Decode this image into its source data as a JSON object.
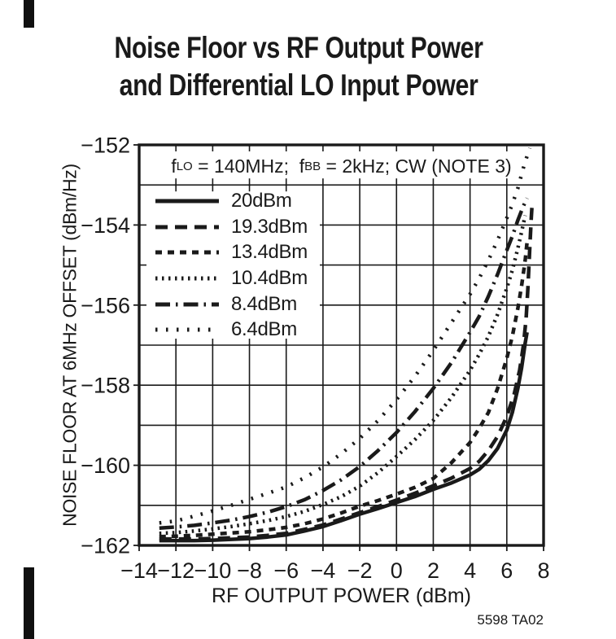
{
  "footer": {
    "figure_id": "5598 TA02"
  },
  "chart_data": {
    "type": "line",
    "title_lines": [
      "Noise Floor vs RF Output Power",
      "and Differential LO Input Power"
    ],
    "annotation_parts": {
      "p1": "f",
      "s1": "LO",
      "p2": " = 140MHz;  f",
      "s2": "BB",
      "p3": " = 2kHz; CW (NOTE 3)"
    },
    "xlabel": "RF OUTPUT POWER (dBm)",
    "ylabel": "NOISE FLOOR AT 6MHz OFFSET (dBm/Hz)",
    "xlim": [
      -14,
      8
    ],
    "ylim": [
      -162,
      -152
    ],
    "x_ticks": [
      -14,
      -12,
      -10,
      -8,
      -6,
      -4,
      -2,
      0,
      2,
      4,
      6,
      8
    ],
    "y_ticks": [
      -162,
      -160,
      -158,
      -156,
      -154,
      -152
    ],
    "x_grid_step": 2,
    "y_grid_step": 1,
    "grid": true,
    "legend_position": "upper-left-inside",
    "line_color": "#1a1a1a",
    "series": [
      {
        "name": "20dBm",
        "style": "solid",
        "dash": "",
        "points": [
          [
            -12.9,
            -161.88
          ],
          [
            -12,
            -161.88
          ],
          [
            -11,
            -161.88
          ],
          [
            -10,
            -161.87
          ],
          [
            -9,
            -161.85
          ],
          [
            -8,
            -161.83
          ],
          [
            -7,
            -161.79
          ],
          [
            -6,
            -161.74
          ],
          [
            -5,
            -161.64
          ],
          [
            -4,
            -161.53
          ],
          [
            -3,
            -161.38
          ],
          [
            -2,
            -161.22
          ],
          [
            -1,
            -161.08
          ],
          [
            0,
            -160.93
          ],
          [
            1,
            -160.78
          ],
          [
            2,
            -160.6
          ],
          [
            3,
            -160.44
          ],
          [
            4,
            -160.24
          ],
          [
            4.5,
            -160.1
          ],
          [
            5,
            -159.88
          ],
          [
            5.5,
            -159.58
          ],
          [
            6,
            -159.12
          ],
          [
            6.3,
            -158.68
          ],
          [
            6.6,
            -158.08
          ],
          [
            6.8,
            -157.58
          ],
          [
            7,
            -156.95
          ],
          [
            7.1,
            -156.68
          ]
        ]
      },
      {
        "name": "19.3dBm",
        "style": "long-dash",
        "dash": "15 9",
        "points": [
          [
            -12.9,
            -161.84
          ],
          [
            -12,
            -161.84
          ],
          [
            -11,
            -161.84
          ],
          [
            -10,
            -161.83
          ],
          [
            -9,
            -161.81
          ],
          [
            -8,
            -161.79
          ],
          [
            -7,
            -161.75
          ],
          [
            -6,
            -161.7
          ],
          [
            -5,
            -161.6
          ],
          [
            -4,
            -161.49
          ],
          [
            -3,
            -161.34
          ],
          [
            -2,
            -161.18
          ],
          [
            -1,
            -161.03
          ],
          [
            0,
            -160.87
          ],
          [
            1,
            -160.7
          ],
          [
            2,
            -160.51
          ],
          [
            3,
            -160.32
          ],
          [
            4,
            -160.08
          ],
          [
            4.5,
            -159.9
          ],
          [
            5,
            -159.63
          ],
          [
            5.5,
            -159.28
          ],
          [
            6,
            -158.78
          ],
          [
            6.4,
            -158.22
          ],
          [
            6.7,
            -157.62
          ],
          [
            6.9,
            -157.02
          ],
          [
            7.05,
            -156.35
          ],
          [
            7.15,
            -155.55
          ],
          [
            7.25,
            -154.55
          ],
          [
            7.33,
            -153.82
          ],
          [
            7.38,
            -153.45
          ]
        ]
      },
      {
        "name": "13.4dBm",
        "style": "short-dash",
        "dash": "8 7",
        "points": [
          [
            -12.9,
            -161.78
          ],
          [
            -12,
            -161.77
          ],
          [
            -11,
            -161.75
          ],
          [
            -10,
            -161.72
          ],
          [
            -9,
            -161.69
          ],
          [
            -8,
            -161.66
          ],
          [
            -7,
            -161.61
          ],
          [
            -6,
            -161.55
          ],
          [
            -5,
            -161.46
          ],
          [
            -4,
            -161.34
          ],
          [
            -3,
            -161.19
          ],
          [
            -2,
            -161.02
          ],
          [
            -1,
            -160.88
          ],
          [
            0,
            -160.72
          ],
          [
            1,
            -160.55
          ],
          [
            2,
            -160.33
          ],
          [
            3,
            -159.93
          ],
          [
            4,
            -159.43
          ],
          [
            4.5,
            -159.08
          ],
          [
            5,
            -158.68
          ],
          [
            5.5,
            -158.08
          ],
          [
            6,
            -157.33
          ],
          [
            6.3,
            -156.78
          ],
          [
            6.6,
            -156.08
          ],
          [
            6.8,
            -155.53
          ],
          [
            7,
            -154.88
          ],
          [
            7.1,
            -154.43
          ]
        ]
      },
      {
        "name": "10.4dBm",
        "style": "dense-dot",
        "dash": "2.5 5.5",
        "points": [
          [
            -12.9,
            -161.7
          ],
          [
            -12,
            -161.68
          ],
          [
            -11,
            -161.64
          ],
          [
            -10,
            -161.59
          ],
          [
            -9,
            -161.53
          ],
          [
            -8,
            -161.46
          ],
          [
            -7,
            -161.38
          ],
          [
            -6,
            -161.28
          ],
          [
            -5,
            -161.15
          ],
          [
            -4,
            -160.98
          ],
          [
            -3,
            -160.78
          ],
          [
            -2,
            -160.52
          ],
          [
            -1,
            -160.18
          ],
          [
            0,
            -159.78
          ],
          [
            1,
            -159.36
          ],
          [
            2,
            -158.88
          ],
          [
            3,
            -158.3
          ],
          [
            4,
            -157.63
          ],
          [
            4.5,
            -157.23
          ],
          [
            5,
            -156.78
          ],
          [
            5.5,
            -156.23
          ],
          [
            6,
            -155.58
          ],
          [
            6.3,
            -155.13
          ],
          [
            6.6,
            -154.58
          ],
          [
            6.8,
            -154.18
          ],
          [
            7,
            -153.76
          ]
        ]
      },
      {
        "name": "8.4dBm",
        "style": "dash-dot",
        "dash": "18 7 2.5 7",
        "points": [
          [
            -12.9,
            -161.57
          ],
          [
            -12,
            -161.54
          ],
          [
            -11,
            -161.5
          ],
          [
            -10,
            -161.44
          ],
          [
            -9,
            -161.37
          ],
          [
            -8,
            -161.28
          ],
          [
            -7,
            -161.17
          ],
          [
            -6,
            -161.03
          ],
          [
            -5,
            -160.86
          ],
          [
            -4,
            -160.63
          ],
          [
            -3,
            -160.36
          ],
          [
            -2,
            -160.03
          ],
          [
            -1,
            -159.63
          ],
          [
            0,
            -159.18
          ],
          [
            1,
            -158.66
          ],
          [
            2,
            -158.08
          ],
          [
            3,
            -157.43
          ],
          [
            4,
            -156.68
          ],
          [
            4.5,
            -156.28
          ],
          [
            5,
            -155.78
          ],
          [
            5.5,
            -155.23
          ],
          [
            6,
            -154.63
          ],
          [
            6.3,
            -154.28
          ],
          [
            6.6,
            -153.88
          ],
          [
            6.9,
            -153.53
          ],
          [
            7.1,
            -153.33
          ]
        ]
      },
      {
        "name": "6.4dBm",
        "style": "sparse-dot",
        "dash": "2.5 10.5",
        "points": [
          [
            -12.9,
            -161.44
          ],
          [
            -12,
            -161.39
          ],
          [
            -11,
            -161.27
          ],
          [
            -10,
            -161.14
          ],
          [
            -9,
            -161
          ],
          [
            -8,
            -160.85
          ],
          [
            -7,
            -160.7
          ],
          [
            -6,
            -160.54
          ],
          [
            -5,
            -160.31
          ],
          [
            -4,
            -160.04
          ],
          [
            -3,
            -159.71
          ],
          [
            -2,
            -159.33
          ],
          [
            -1,
            -158.88
          ],
          [
            0,
            -158.36
          ],
          [
            1,
            -157.78
          ],
          [
            2,
            -157.13
          ],
          [
            3,
            -156.43
          ],
          [
            4,
            -155.73
          ],
          [
            4.5,
            -155.33
          ],
          [
            5,
            -154.88
          ],
          [
            5.5,
            -154.38
          ],
          [
            6,
            -153.83
          ],
          [
            6.3,
            -153.48
          ],
          [
            6.6,
            -153.08
          ],
          [
            6.9,
            -152.58
          ],
          [
            7.1,
            -152.28
          ],
          [
            7.25,
            -152.08
          ]
        ]
      }
    ]
  }
}
